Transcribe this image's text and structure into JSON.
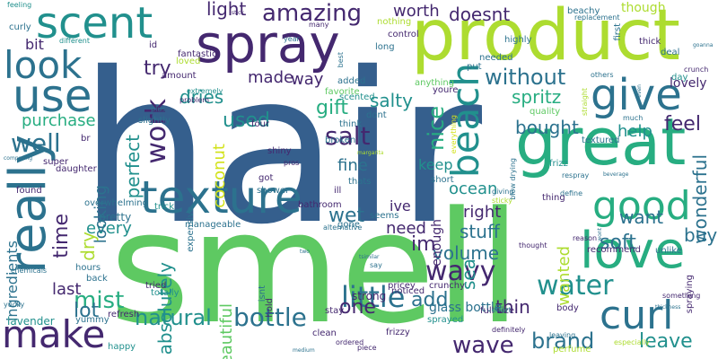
{
  "palette": {
    "dark_purple": "#44286f",
    "indigo": "#3b4c8c",
    "blue": "#355f8d",
    "teal_blue": "#2c728e",
    "teal": "#21908d",
    "green_teal": "#27ad81",
    "green": "#5ec962",
    "lime": "#addc30",
    "yellow_green": "#d2e21b"
  },
  "words": [
    {
      "text": "hair",
      "weight": 1.0
    },
    {
      "text": "smell",
      "weight": 0.95
    },
    {
      "text": "product",
      "weight": 0.62
    },
    {
      "text": "spray",
      "weight": 0.55
    },
    {
      "text": "great",
      "weight": 0.53
    },
    {
      "text": "scent",
      "weight": 0.45
    },
    {
      "text": "texture",
      "weight": 0.4
    },
    {
      "text": "love",
      "weight": 0.4
    },
    {
      "text": "really",
      "weight": 0.4
    },
    {
      "text": "use",
      "weight": 0.38
    },
    {
      "text": "look",
      "weight": 0.38
    },
    {
      "text": "make",
      "weight": 0.36
    },
    {
      "text": "curl",
      "weight": 0.34
    },
    {
      "text": "give",
      "weight": 0.33
    },
    {
      "text": "beach",
      "weight": 0.33
    },
    {
      "text": "good",
      "weight": 0.32
    },
    {
      "text": "amazing",
      "weight": 0.25
    },
    {
      "text": "little",
      "weight": 0.25
    },
    {
      "text": "bottle",
      "weight": 0.24
    },
    {
      "text": "wavy",
      "weight": 0.24
    },
    {
      "text": "water",
      "weight": 0.24
    },
    {
      "text": "wave",
      "weight": 0.22
    },
    {
      "text": "well",
      "weight": 0.22
    },
    {
      "text": "without",
      "weight": 0.22
    },
    {
      "text": "salt",
      "weight": 0.22
    },
    {
      "text": "work",
      "weight": 0.22
    },
    {
      "text": "natural",
      "weight": 0.2
    },
    {
      "text": "mist",
      "weight": 0.2
    },
    {
      "text": "one",
      "weight": 0.18
    },
    {
      "text": "feel",
      "weight": 0.2
    },
    {
      "text": "brand",
      "weight": 0.18
    },
    {
      "text": "volume",
      "weight": 0.18
    },
    {
      "text": "wet",
      "weight": 0.18
    },
    {
      "text": "soft",
      "weight": 0.18
    },
    {
      "text": "im",
      "weight": 0.18
    },
    {
      "text": "add",
      "weight": 0.18
    },
    {
      "text": "leave",
      "weight": 0.17
    },
    {
      "text": "time",
      "weight": 0.17
    },
    {
      "text": "try",
      "weight": 0.17
    },
    {
      "text": "lot",
      "weight": 0.17
    },
    {
      "text": "sea",
      "weight": 0.17
    },
    {
      "text": "gift",
      "weight": 0.16
    },
    {
      "text": "nice",
      "weight": 0.16
    },
    {
      "text": "want",
      "weight": 0.16
    },
    {
      "text": "buy",
      "weight": 0.16
    },
    {
      "text": "wonderful",
      "weight": 0.15
    },
    {
      "text": "used",
      "weight": 0.15
    },
    {
      "text": "dry",
      "weight": 0.15
    },
    {
      "text": "stuff",
      "weight": 0.15
    },
    {
      "text": "bought",
      "weight": 0.15
    },
    {
      "text": "spritz",
      "weight": 0.14
    },
    {
      "text": "thin",
      "weight": 0.14
    },
    {
      "text": "perfect",
      "weight": 0.14
    },
    {
      "text": "absolutely",
      "weight": 0.14
    },
    {
      "text": "beautiful",
      "weight": 0.14
    },
    {
      "text": "made",
      "weight": 0.13
    },
    {
      "text": "way",
      "weight": 0.13
    },
    {
      "text": "purchase",
      "weight": 0.13
    },
    {
      "text": "right",
      "weight": 0.13
    },
    {
      "text": "need",
      "weight": 0.13
    },
    {
      "text": "every",
      "weight": 0.13
    },
    {
      "text": "light",
      "weight": 0.13
    },
    {
      "text": "doesnt",
      "weight": 0.12
    },
    {
      "text": "worth",
      "weight": 0.12
    },
    {
      "text": "dries",
      "weight": 0.12
    },
    {
      "text": "coconut",
      "weight": 0.12
    },
    {
      "text": "looking",
      "weight": 0.12
    },
    {
      "text": "salty",
      "weight": 0.12
    },
    {
      "text": "fine",
      "weight": 0.11
    },
    {
      "text": "keep",
      "weight": 0.11
    },
    {
      "text": "ocean",
      "weight": 0.11
    },
    {
      "text": "help",
      "weight": 0.11
    },
    {
      "text": "last",
      "weight": 0.11
    },
    {
      "text": "ive",
      "weight": 0.11
    },
    {
      "text": "enough",
      "weight": 0.11
    },
    {
      "text": "wanted",
      "weight": 0.11
    },
    {
      "text": "ingredients",
      "weight": 0.1
    },
    {
      "text": "though",
      "weight": 0.1
    },
    {
      "text": "lovely",
      "weight": 0.08
    },
    {
      "text": "bit",
      "weight": 0.09
    },
    {
      "text": "glass bottle",
      "weight": 0.08
    },
    {
      "text": "crunchy",
      "weight": 0.07
    },
    {
      "text": "pricey",
      "weight": 0.07
    },
    {
      "text": "strong",
      "weight": 0.07
    },
    {
      "text": "found",
      "weight": 0.07
    },
    {
      "text": "pretty",
      "weight": 0.07
    },
    {
      "text": "lavender",
      "weight": 0.07
    },
    {
      "text": "sprayed",
      "weight": 0.07
    },
    {
      "text": "plus",
      "weight": 0.05
    },
    {
      "text": "full size",
      "weight": 0.05
    },
    {
      "text": "super",
      "weight": 0.06
    },
    {
      "text": "thick",
      "weight": 0.06
    },
    {
      "text": "quality",
      "weight": 0.06
    },
    {
      "text": "amount",
      "weight": 0.06
    },
    {
      "text": "bathroom",
      "weight": 0.06
    },
    {
      "text": "shower",
      "weight": 0.06
    },
    {
      "text": "hours",
      "weight": 0.06
    },
    {
      "text": "tried",
      "weight": 0.06
    },
    {
      "text": "totally",
      "weight": 0.06
    },
    {
      "text": "trick",
      "weight": 0.06
    },
    {
      "text": "refresh",
      "weight": 0.06
    },
    {
      "text": "stay",
      "weight": 0.06
    },
    {
      "text": "yummy",
      "weight": 0.06
    },
    {
      "text": "hold",
      "weight": 0.06
    },
    {
      "text": "isnt",
      "weight": 0.06
    },
    {
      "text": "added",
      "weight": 0.06
    },
    {
      "text": "youre",
      "weight": 0.06
    },
    {
      "text": "day",
      "weight": 0.06
    },
    {
      "text": "first",
      "weight": 0.05
    },
    {
      "text": "fantastic",
      "weight": 0.05
    },
    {
      "text": "dont",
      "weight": 0.05
    },
    {
      "text": "think",
      "weight": 0.05
    },
    {
      "text": "thats",
      "weight": 0.05
    },
    {
      "text": "seems",
      "weight": 0.05
    },
    {
      "text": "gone",
      "weight": 0.05
    },
    {
      "text": "ill",
      "weight": 0.05
    },
    {
      "text": "clean",
      "weight": 0.05
    },
    {
      "text": "ordered",
      "weight": 0.05
    },
    {
      "text": "piece",
      "weight": 0.05
    },
    {
      "text": "frizzy",
      "weight": 0.05
    },
    {
      "text": "definitely",
      "weight": 0.05
    },
    {
      "text": "perfume",
      "weight": 0.05
    },
    {
      "text": "effort",
      "weight": 0.05
    },
    {
      "text": "body",
      "weight": 0.05
    },
    {
      "text": "thought",
      "weight": 0.05
    },
    {
      "text": "reason",
      "weight": 0.05
    },
    {
      "text": "recommend",
      "weight": 0.05
    },
    {
      "text": "unlike",
      "weight": 0.05
    },
    {
      "text": "something",
      "weight": 0.05
    },
    {
      "text": "spraying",
      "weight": 0.05
    },
    {
      "text": "thickness",
      "weight": 0.04
    },
    {
      "text": "noticed",
      "weight": 0.05
    },
    {
      "text": "leaving",
      "weight": 0.05
    },
    {
      "text": "especially",
      "weight": 0.05
    },
    {
      "text": "happy",
      "weight": 0.05
    },
    {
      "text": "yucky",
      "weight": 0.04
    },
    {
      "text": "back",
      "weight": 0.05
    },
    {
      "text": "chemicals",
      "weight": 0.04
    },
    {
      "text": "comparing",
      "weight": 0.04
    },
    {
      "text": "daughter",
      "weight": 0.05
    },
    {
      "text": "overwhelming",
      "weight": 0.05
    },
    {
      "text": "manageable",
      "weight": 0.05
    },
    {
      "text": "expensive",
      "weight": 0.05
    },
    {
      "text": "got",
      "weight": 0.05
    },
    {
      "text": "shiny",
      "weight": 0.05
    },
    {
      "text": "four",
      "weight": 0.05
    },
    {
      "text": "slightly",
      "weight": 0.05
    },
    {
      "text": "extremely",
      "weight": 0.05
    },
    {
      "text": "loved",
      "weight": 0.05
    },
    {
      "text": "id",
      "weight": 0.05
    },
    {
      "text": "problem",
      "weight": 0.05
    },
    {
      "text": "stick",
      "weight": 0.04
    },
    {
      "text": "many",
      "weight": 0.04
    },
    {
      "text": "nothing",
      "weight": 0.05
    },
    {
      "text": "control",
      "weight": 0.05
    },
    {
      "text": "long",
      "weight": 0.05
    },
    {
      "text": "scented",
      "weight": 0.05
    },
    {
      "text": "favorite",
      "weight": 0.05
    },
    {
      "text": "anything",
      "weight": 0.05
    },
    {
      "text": "needed",
      "weight": 0.05
    },
    {
      "text": "put",
      "weight": 0.05
    },
    {
      "text": "highly",
      "weight": 0.05
    },
    {
      "text": "beachy",
      "weight": 0.05
    },
    {
      "text": "replacement",
      "weight": 0.04
    },
    {
      "text": "deal",
      "weight": 0.05
    },
    {
      "text": "goanna",
      "weight": 0.04
    },
    {
      "text": "crunch",
      "weight": 0.05
    },
    {
      "text": "others",
      "weight": 0.04
    },
    {
      "text": "much",
      "weight": 0.04
    },
    {
      "text": "even",
      "weight": 0.04
    },
    {
      "text": "straight",
      "weight": 0.04
    },
    {
      "text": "textured",
      "weight": 0.05
    },
    {
      "text": "frizz",
      "weight": 0.05
    },
    {
      "text": "respray",
      "weight": 0.04
    },
    {
      "text": "beverage",
      "weight": 0.04
    },
    {
      "text": "define",
      "weight": 0.04
    },
    {
      "text": "wont",
      "weight": 0.04
    },
    {
      "text": "thing",
      "weight": 0.05
    },
    {
      "text": "blow drying",
      "weight": 0.04
    },
    {
      "text": "everything",
      "weight": 0.04
    },
    {
      "text": "short",
      "weight": 0.05
    },
    {
      "text": "giving",
      "weight": 0.05
    },
    {
      "text": "sticky",
      "weight": 0.05
    },
    {
      "text": "alternative",
      "weight": 0.04
    },
    {
      "text": "tsimilar",
      "weight": 0.04
    },
    {
      "text": "say",
      "weight": 0.05
    },
    {
      "text": "medium",
      "weight": 0.04
    },
    {
      "text": "two",
      "weight": 0.04
    },
    {
      "text": "lightly",
      "weight": 0.04
    },
    {
      "text": "pros",
      "weight": 0.04
    },
    {
      "text": "year",
      "weight": 0.04
    },
    {
      "text": "best",
      "weight": 0.04
    },
    {
      "text": "feeling",
      "weight": 0.05
    },
    {
      "text": "curly",
      "weight": 0.05
    },
    {
      "text": "different",
      "weight": 0.05
    },
    {
      "text": "br",
      "weight": 0.05
    },
    {
      "text": "margarita",
      "weight": 0.03
    },
    {
      "text": "broken",
      "weight": 0.04
    }
  ]
}
